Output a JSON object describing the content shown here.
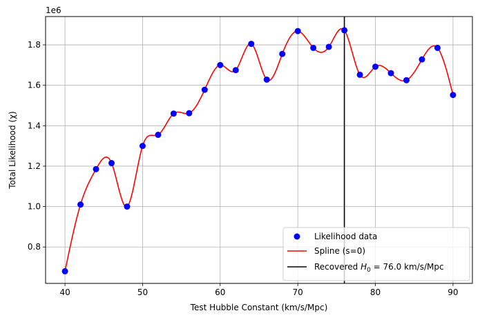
{
  "chart_data": {
    "type": "scatter",
    "xlabel": "Test Hubble Constant (km/s/Mpc)",
    "ylabel": "Total Likelihood (χ)",
    "y_offset_label": "1e6",
    "xlim": [
      37.5,
      92.5
    ],
    "ylim": [
      0.62,
      1.94
    ],
    "x_ticks": [
      40,
      50,
      60,
      70,
      80,
      90
    ],
    "x_tick_labels": [
      "40",
      "50",
      "60",
      "70",
      "80",
      "90"
    ],
    "y_ticks": [
      0.8,
      1.0,
      1.2,
      1.4,
      1.6,
      1.8
    ],
    "y_tick_labels": [
      "0.8",
      "1.0",
      "1.2",
      "1.4",
      "1.6",
      "1.8"
    ],
    "grid": true,
    "legend_position": "lower-right",
    "series": [
      {
        "name": "Likelihood data",
        "kind": "scatter",
        "color": "#0000ff",
        "x": [
          40,
          42,
          44,
          46,
          48,
          50,
          52,
          54,
          56,
          58,
          60,
          62,
          64,
          66,
          68,
          70,
          72,
          74,
          76,
          78,
          80,
          82,
          84,
          86,
          88,
          90
        ],
        "y": [
          0.68,
          1.01,
          1.185,
          1.215,
          1.0,
          1.3,
          1.355,
          1.46,
          1.462,
          1.578,
          1.7,
          1.675,
          1.805,
          1.628,
          1.755,
          1.868,
          1.785,
          1.79,
          1.872,
          1.652,
          1.692,
          1.66,
          1.625,
          1.728,
          1.785,
          1.552
        ]
      },
      {
        "name": "Spline (s=0)",
        "kind": "line",
        "color": "#ff0000"
      },
      {
        "name": "Recovered $H_0$ = 76.0 km/s/Mpc",
        "name_parts": [
          "Recovered ",
          "H",
          "0",
          " = 76.0 km/s/Mpc"
        ],
        "kind": "vline",
        "color": "#000000",
        "x": 76.0
      }
    ]
  }
}
